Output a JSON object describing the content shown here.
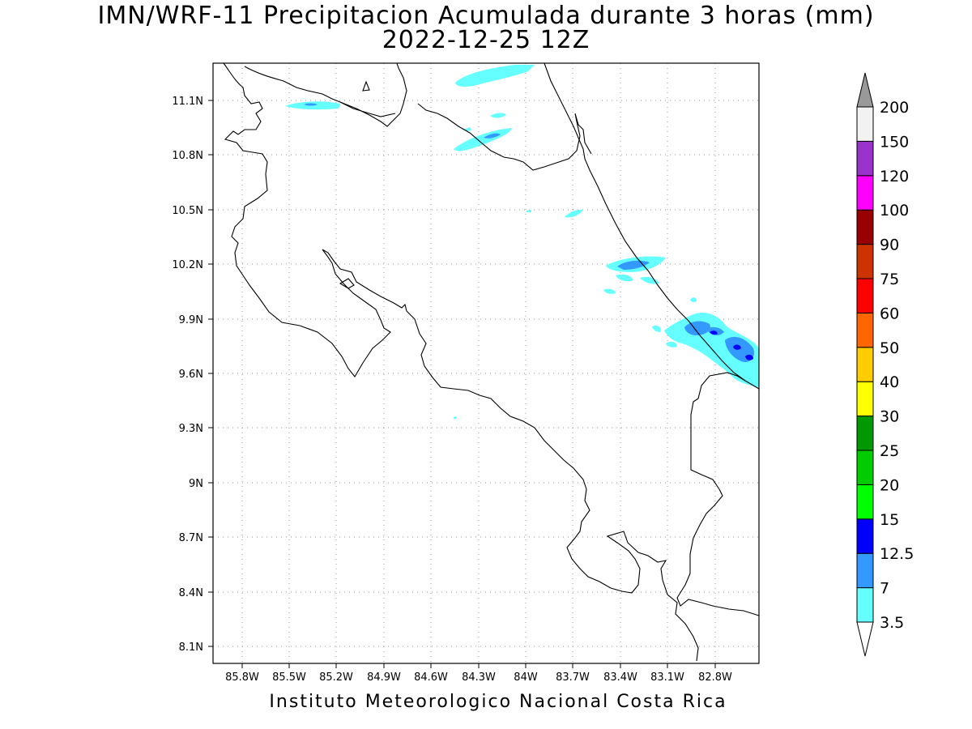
{
  "title": {
    "line1": "IMN/WRF-11 Precipitacion Acumulada durante 3 horas (mm)",
    "line2": "2022-12-25 12Z"
  },
  "footer": "Instituto Meteorologico Nacional Costa Rica",
  "map": {
    "lon_labels": [
      "85.8W",
      "85.5W",
      "85.2W",
      "84.9W",
      "84.6W",
      "84.3W",
      "84W",
      "83.7W",
      "83.4W",
      "83.1W",
      "82.8W"
    ],
    "lat_labels": [
      "11.1N",
      "10.8N",
      "10.5N",
      "10.2N",
      "9.9N",
      "9.6N",
      "9.3N",
      "9N",
      "8.7N",
      "8.4N",
      "8.1N"
    ],
    "gridlines": "dotted",
    "coastline_color": "#000000"
  },
  "colorbar": {
    "labels": [
      "200",
      "150",
      "120",
      "100",
      "90",
      "75",
      "60",
      "50",
      "40",
      "30",
      "25",
      "20",
      "15",
      "12.5",
      "7",
      "3.5"
    ],
    "bins": [
      {
        "from": "3.5",
        "to": "7",
        "color": "#66ffff"
      },
      {
        "from": "7",
        "to": "12.5",
        "color": "#3399ff"
      },
      {
        "from": "12.5",
        "to": "15",
        "color": "#0000ff"
      },
      {
        "from": "15",
        "to": "20",
        "color": "#00ff00"
      },
      {
        "from": "20",
        "to": "25",
        "color": "#00cc00"
      },
      {
        "from": "25",
        "to": "30",
        "color": "#009900"
      },
      {
        "from": "30",
        "to": "40",
        "color": "#ffff00"
      },
      {
        "from": "40",
        "to": "50",
        "color": "#ffcc00"
      },
      {
        "from": "50",
        "to": "60",
        "color": "#ff6600"
      },
      {
        "from": "60",
        "to": "75",
        "color": "#ff0000"
      },
      {
        "from": "75",
        "to": "90",
        "color": "#cc3300"
      },
      {
        "from": "90",
        "to": "100",
        "color": "#990000"
      },
      {
        "from": "100",
        "to": "120",
        "color": "#ff00ff"
      },
      {
        "from": "120",
        "to": "150",
        "color": "#9933cc"
      },
      {
        "from": "150",
        "to": "200",
        "color": "#f2f2f2"
      }
    ],
    "over_color": "#999999",
    "under_color": "#ffffff"
  }
}
